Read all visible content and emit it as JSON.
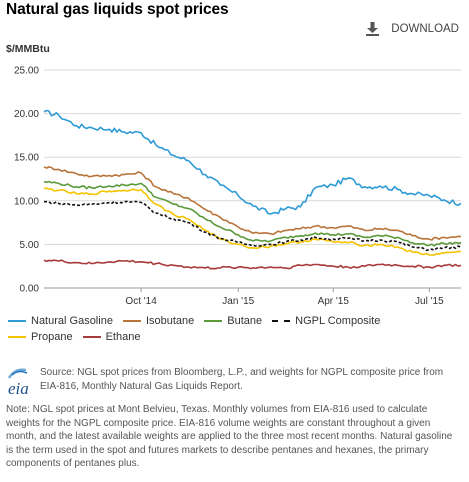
{
  "header": {
    "title": "Natural gas liquids spot prices",
    "download_label": "DOWNLOAD",
    "download_icon": "download-icon"
  },
  "chart_data": {
    "type": "line",
    "title": "Natural gas liquids spot prices",
    "ylabel": "$/MMBtu",
    "ylim": [
      0,
      25
    ],
    "yticks": [
      "0.00",
      "5.00",
      "10.00",
      "15.00",
      "20.00",
      "25.00"
    ],
    "xticks": [
      "Oct '14",
      "Jan '15",
      "Apr '15",
      "Jul '15"
    ],
    "x": [
      "2014-07-01",
      "2014-07-15",
      "2014-08-01",
      "2014-08-15",
      "2014-09-01",
      "2014-09-15",
      "2014-10-01",
      "2014-10-15",
      "2014-11-01",
      "2014-11-15",
      "2014-12-01",
      "2014-12-15",
      "2015-01-01",
      "2015-01-15",
      "2015-02-01",
      "2015-02-15",
      "2015-03-01",
      "2015-03-15",
      "2015-04-01",
      "2015-04-15",
      "2015-05-01",
      "2015-05-15",
      "2015-06-01",
      "2015-06-15",
      "2015-07-01",
      "2015-07-15",
      "2015-07-31"
    ],
    "grid": true,
    "legend_position": "bottom",
    "series": [
      {
        "name": "Natural Gasoline",
        "color": "#2e9bd6",
        "values": [
          20.2,
          19.8,
          18.6,
          18.4,
          18.2,
          17.9,
          17.8,
          16.4,
          15.2,
          14.6,
          13.0,
          11.8,
          10.6,
          9.4,
          8.5,
          9.1,
          9.3,
          11.5,
          11.8,
          12.6,
          11.6,
          11.7,
          11.3,
          10.8,
          10.6,
          10.1,
          9.7
        ]
      },
      {
        "name": "Isobutane",
        "color": "#b8743a",
        "values": [
          13.9,
          13.6,
          13.1,
          12.8,
          12.9,
          13.0,
          13.2,
          11.6,
          10.8,
          10.3,
          9.0,
          8.1,
          7.0,
          6.3,
          6.2,
          6.6,
          6.8,
          7.1,
          6.9,
          7.1,
          6.6,
          6.8,
          6.6,
          6.0,
          5.6,
          5.8,
          5.9
        ]
      },
      {
        "name": "Butane",
        "color": "#5a9a3a",
        "values": [
          12.2,
          12.0,
          11.6,
          11.5,
          11.7,
          11.8,
          12.0,
          10.4,
          9.6,
          9.1,
          7.9,
          7.0,
          6.1,
          5.4,
          5.4,
          5.8,
          6.0,
          6.3,
          6.1,
          6.2,
          5.8,
          6.0,
          5.8,
          5.2,
          4.9,
          5.1,
          5.2
        ]
      },
      {
        "name": "NGPL Composite",
        "color": "#111111",
        "dashed": true,
        "values": [
          9.9,
          9.7,
          9.5,
          9.6,
          9.8,
          9.9,
          9.8,
          8.6,
          7.9,
          7.5,
          6.4,
          5.7,
          5.2,
          4.9,
          5.0,
          5.3,
          5.5,
          5.8,
          5.6,
          5.7,
          5.4,
          5.5,
          5.3,
          4.7,
          4.4,
          4.6,
          4.7
        ]
      },
      {
        "name": "Propane",
        "color": "#f5c400",
        "values": [
          11.4,
          11.2,
          10.8,
          10.8,
          11.1,
          11.2,
          11.3,
          9.6,
          8.4,
          7.9,
          6.6,
          5.6,
          5.0,
          4.6,
          4.8,
          5.1,
          5.3,
          5.6,
          5.3,
          5.2,
          4.9,
          5.0,
          4.7,
          4.1,
          3.8,
          4.0,
          4.2
        ]
      },
      {
        "name": "Ethane",
        "color": "#a83a3a",
        "values": [
          3.2,
          3.1,
          2.9,
          2.8,
          3.0,
          3.1,
          3.0,
          2.8,
          2.6,
          2.4,
          2.3,
          2.3,
          2.4,
          2.3,
          2.4,
          2.3,
          2.6,
          2.7,
          2.5,
          2.4,
          2.5,
          2.7,
          2.6,
          2.5,
          2.4,
          2.6,
          2.6
        ]
      }
    ]
  },
  "source": {
    "logo_text": "eia",
    "text": "Source: NGL spot prices from Bloomberg, L.P., and weights for NGPL composite price from EIA-816, Monthly Natural Gas Liquids Report."
  },
  "note": {
    "text": "Note: NGL spot prices at Mont Belvieu, Texas. Monthly volumes from EIA-816 used to calculate weights for the NGPL composite price. EIA-816 volume weights are constant throughout a given month, and the latest available weights are applied to the three most recent months. Natural gasoline is the term used in the spot and futures markets to describe pentanes and hexanes, the primary components of pentanes plus."
  }
}
